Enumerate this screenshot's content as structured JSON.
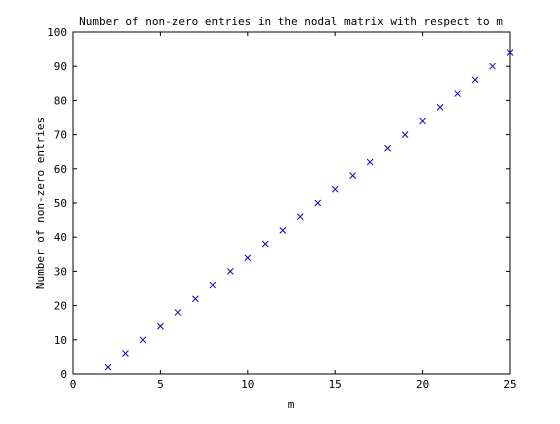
{
  "chart_data": {
    "type": "scatter",
    "title": "Number of non-zero entries in the nodal matrix with respect to m",
    "xlabel": "m",
    "ylabel": "Number of non-zero entries",
    "xlim": [
      0,
      25
    ],
    "ylim": [
      0,
      100
    ],
    "xticks": [
      0,
      5,
      10,
      15,
      20,
      25
    ],
    "yticks": [
      0,
      10,
      20,
      30,
      40,
      50,
      60,
      70,
      80,
      90,
      100
    ],
    "grid": false,
    "legend": "none",
    "marker": "x",
    "color": "#0000ff",
    "series": [
      {
        "x": [
          2,
          3,
          4,
          5,
          6,
          7,
          8,
          9,
          10,
          11,
          12,
          13,
          14,
          15,
          16,
          17,
          18,
          19,
          20,
          21,
          22,
          23,
          24,
          25
        ],
        "y": [
          2,
          6,
          10,
          14,
          18,
          22,
          26,
          30,
          34,
          38,
          42,
          46,
          50,
          54,
          58,
          62,
          66,
          70,
          74,
          78,
          82,
          86,
          90,
          94
        ]
      }
    ]
  }
}
